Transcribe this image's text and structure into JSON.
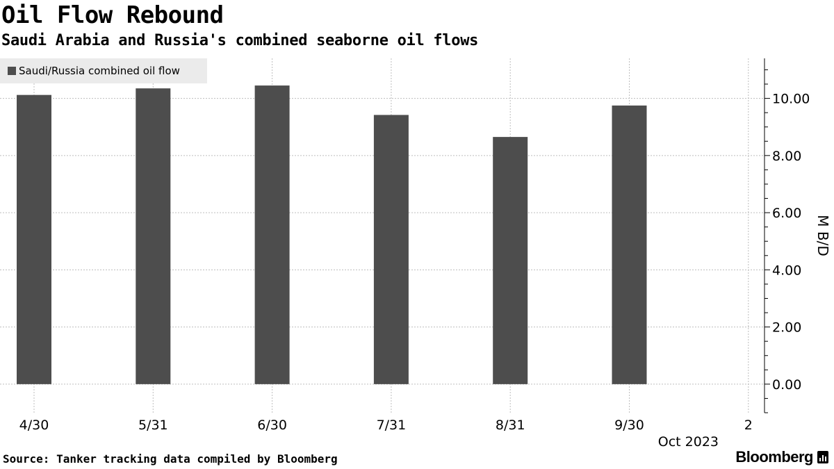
{
  "header": {
    "title": "Oil Flow Rebound",
    "subtitle": "Saudi Arabia and Russia's combined seaborne oil flows"
  },
  "footer": {
    "source": "Source: Tanker tracking data compiled by Bloomberg",
    "brand": "Bloomberg"
  },
  "colors": {
    "bar": "#4d4d4d",
    "grid": "#bdbdbd",
    "axis": "#000000",
    "legend_bg": "#ebebeb"
  },
  "chart_data": {
    "type": "bar",
    "categories": [
      "4/30",
      "5/31",
      "6/30",
      "7/31",
      "8/31",
      "9/30"
    ],
    "series": [
      {
        "name": "Saudi/Russia combined oil flow",
        "values": [
          10.12,
          10.35,
          10.45,
          9.42,
          8.65,
          9.75
        ]
      }
    ],
    "x_tick_labels": [
      "4/30",
      "5/31",
      "6/30",
      "7/31",
      "8/31",
      "9/30",
      "2"
    ],
    "x_sublabel": "Oct 2023",
    "ylabel": "M B/D",
    "ylim": [
      -1.0,
      11.4
    ],
    "yticks": [
      0,
      2,
      4,
      6,
      8,
      10
    ],
    "ytick_labels": [
      "0.00",
      "2.00",
      "4.00",
      "6.00",
      "8.00",
      "10.00"
    ],
    "y_axis_position": "right",
    "grid": true,
    "legend_position": "top-left"
  }
}
